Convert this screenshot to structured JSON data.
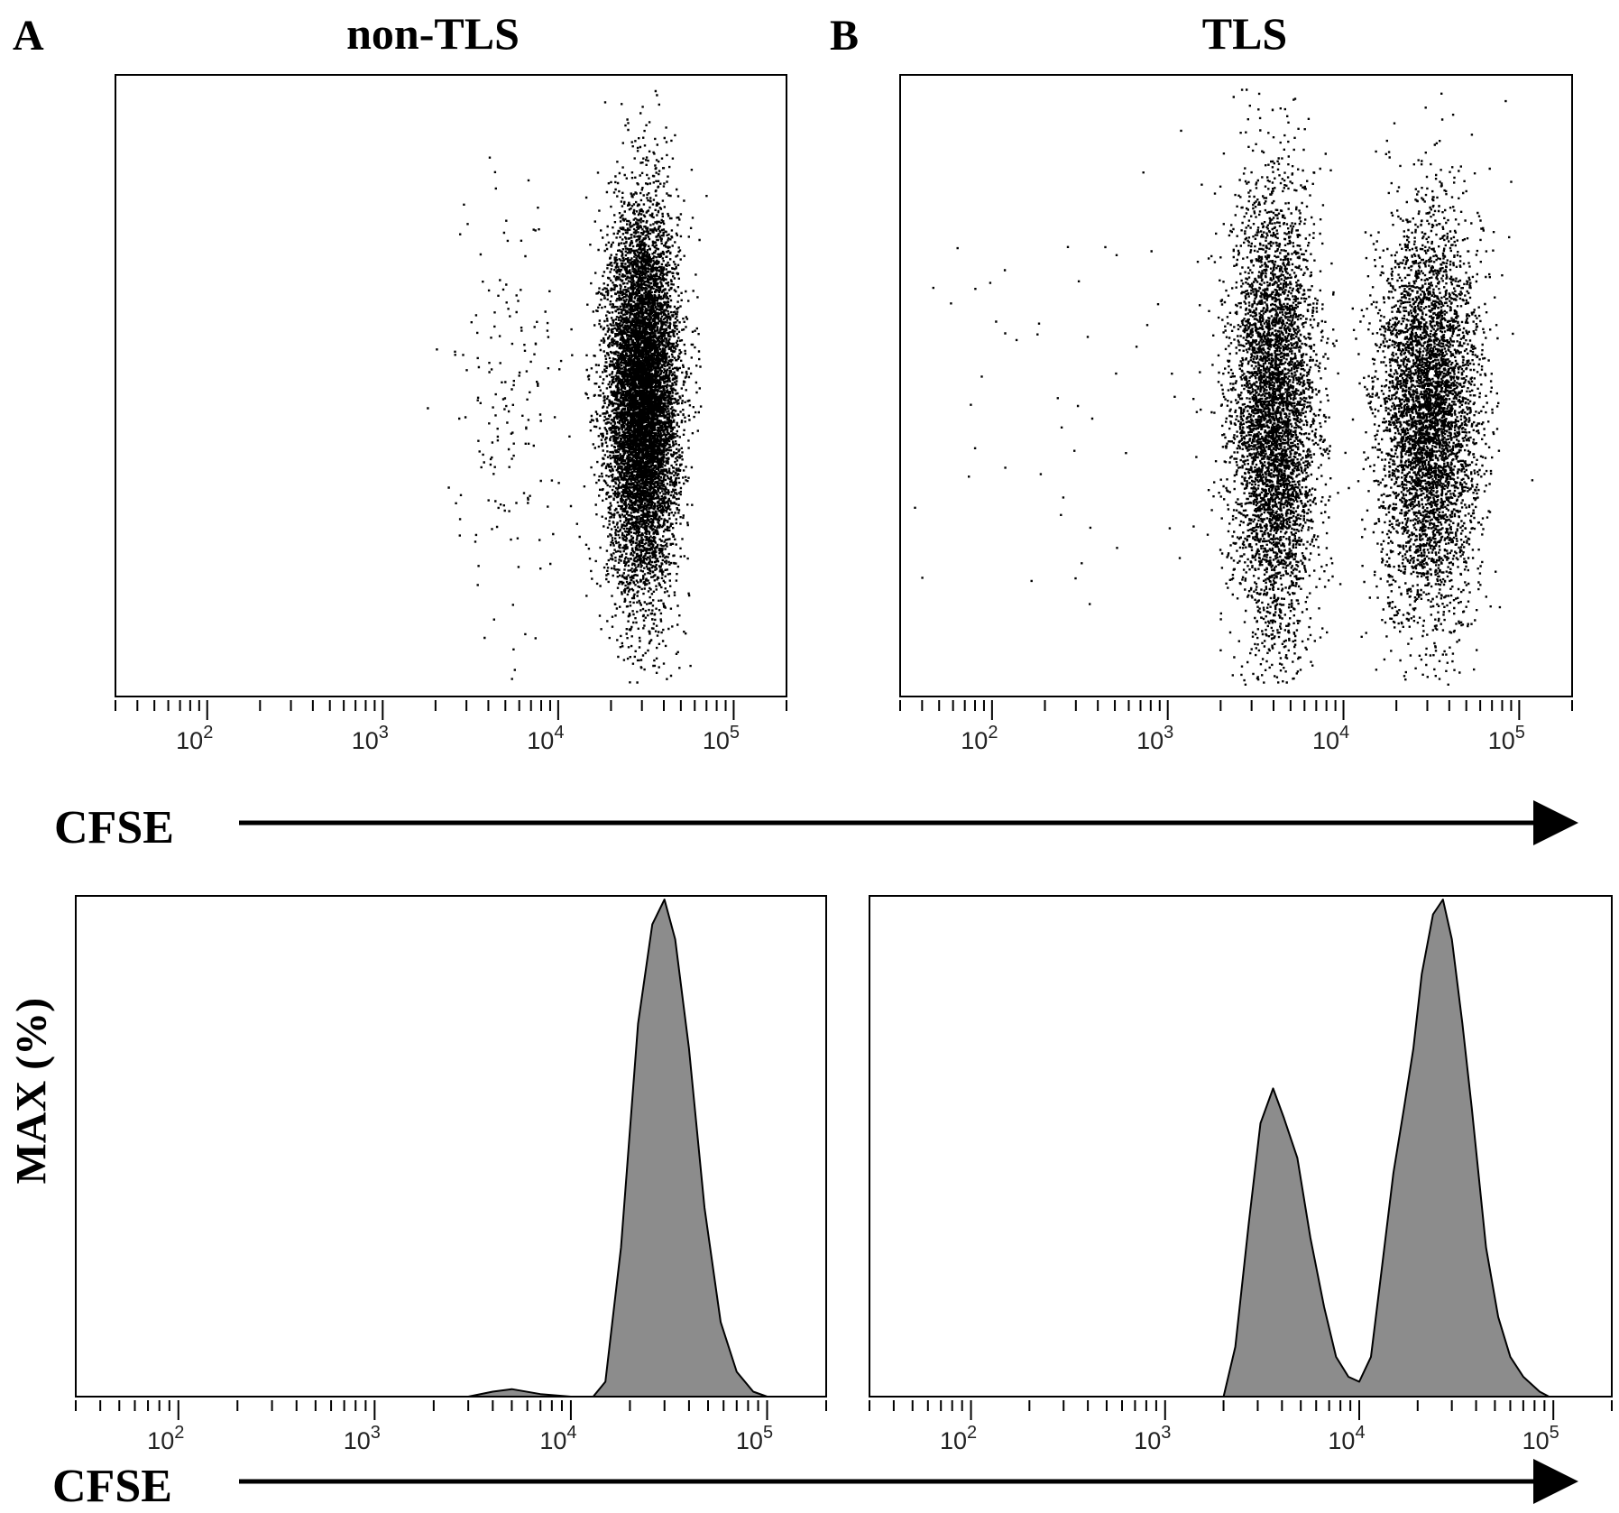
{
  "figure": {
    "panel_a_letter": "A",
    "panel_b_letter": "B",
    "panel_a_title": "non-TLS",
    "panel_b_title": "TLS",
    "x_axis_name_top": "CFSE",
    "x_axis_name_bottom": "CFSE",
    "hist_ylabel": "MAX (%)"
  },
  "chart_data": [
    {
      "type": "scatter",
      "panel": "A",
      "title": "non-TLS",
      "xlabel": "CFSE",
      "x_scale": "log",
      "xlim": [
        30,
        200000
      ],
      "x_ticks": [
        100,
        1000,
        10000,
        100000
      ],
      "x_tick_labels": [
        "10^2",
        "10^3",
        "10^4",
        "10^5"
      ],
      "clusters": [
        {
          "name": "main",
          "center_x": 30000,
          "spread_log": 0.1,
          "y_center": 0.48,
          "y_spread": 0.15,
          "density": "very high"
        },
        {
          "name": "sparse",
          "center_x": 5000,
          "spread_log": 0.16,
          "y_center": 0.45,
          "y_spread": 0.18,
          "density": "low"
        }
      ]
    },
    {
      "type": "scatter",
      "panel": "B",
      "title": "TLS",
      "xlabel": "CFSE",
      "x_scale": "log",
      "xlim": [
        30,
        200000
      ],
      "x_ticks": [
        100,
        1000,
        10000,
        100000
      ],
      "x_tick_labels": [
        "10^2",
        "10^3",
        "10^4",
        "10^5"
      ],
      "clusters": [
        {
          "name": "divided",
          "center_x": 4000,
          "spread_log": 0.12,
          "y_center": 0.45,
          "y_spread": 0.18,
          "density": "high"
        },
        {
          "name": "undivided",
          "center_x": 30000,
          "spread_log": 0.14,
          "y_center": 0.45,
          "y_spread": 0.16,
          "density": "high"
        },
        {
          "name": "sparse",
          "center_x": 300,
          "spread_log": 0.7,
          "y_center": 0.52,
          "y_spread": 0.2,
          "density": "very low"
        }
      ]
    },
    {
      "type": "area",
      "panel": "A",
      "xlabel": "CFSE",
      "ylabel": "MAX (%)",
      "x_scale": "log",
      "xlim": [
        30,
        200000
      ],
      "ylim": [
        0,
        100
      ],
      "x_ticks": [
        100,
        1000,
        10000,
        100000
      ],
      "x_tick_labels": [
        "10^2",
        "10^3",
        "10^4",
        "10^5"
      ],
      "x": [
        30,
        3000,
        4000,
        5000,
        7000,
        10000,
        13000,
        15000,
        18000,
        22000,
        26000,
        30000,
        34000,
        40000,
        48000,
        58000,
        70000,
        85000,
        100000,
        200000
      ],
      "y": [
        0,
        0,
        1,
        1.5,
        0.5,
        0,
        0,
        3,
        30,
        75,
        95,
        100,
        92,
        70,
        38,
        15,
        5,
        1,
        0,
        0
      ]
    },
    {
      "type": "area",
      "panel": "B",
      "xlabel": "CFSE",
      "ylabel": "MAX (%)",
      "x_scale": "log",
      "xlim": [
        30,
        200000
      ],
      "ylim": [
        0,
        100
      ],
      "x_ticks": [
        100,
        1000,
        10000,
        100000
      ],
      "x_tick_labels": [
        "10^2",
        "10^3",
        "10^4",
        "10^5"
      ],
      "x": [
        30,
        2000,
        2300,
        2700,
        3100,
        3600,
        4100,
        4800,
        5600,
        6600,
        7600,
        8800,
        10000,
        11500,
        13000,
        15000,
        17000,
        19000,
        21000,
        24000,
        27000,
        30000,
        34000,
        38000,
        45000,
        52000,
        60000,
        70000,
        85000,
        95000,
        200000
      ],
      "y": [
        0,
        0,
        10,
        35,
        55,
        62,
        56,
        48,
        32,
        18,
        8,
        4,
        3,
        8,
        25,
        45,
        58,
        70,
        85,
        97,
        100,
        92,
        75,
        58,
        30,
        16,
        8,
        4,
        1,
        0,
        0
      ]
    }
  ]
}
